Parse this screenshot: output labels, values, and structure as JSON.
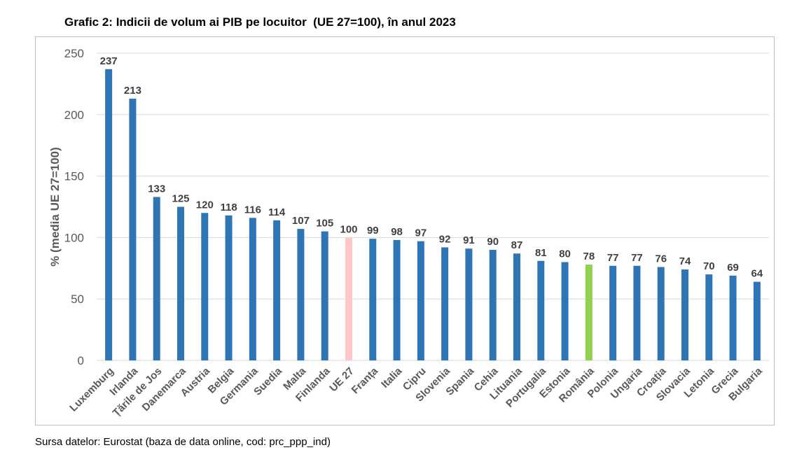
{
  "title": "Grafic 2: Indicii de volum ai PIB pe locuitor  (UE 27=100), în anul 2023",
  "source": "Sursa datelor: Eurostat (baza de data online, cod: prc_ppp_ind)",
  "colors": {
    "default": "#2e75b6",
    "eu": "#ffc7c7",
    "romania": "#92d050",
    "grid": "#d9d9d9",
    "label": "#404040",
    "axis_text": "#595959"
  },
  "chart_data": {
    "type": "bar",
    "title": "Grafic 2: Indicii de volum ai PIB pe locuitor  (UE 27=100), în anul 2023",
    "xlabel": "",
    "ylabel": "% (media UE 27=100)",
    "ylim": [
      0,
      250
    ],
    "yticks": [
      0,
      50,
      100,
      150,
      200,
      250
    ],
    "grid": true,
    "categories": [
      "Luxemburg",
      "Irlanda",
      "Țările de Jos",
      "Danemarca",
      "Austria",
      "Belgia",
      "Germania",
      "Suedia",
      "Malta",
      "Finlanda",
      "UE 27",
      "Franța",
      "Italia",
      "Cipru",
      "Slovenia",
      "Spania",
      "Cehia",
      "Lituania",
      "Portugalia",
      "Estonia",
      "România",
      "Polonia",
      "Ungaria",
      "Croația",
      "Slovacia",
      "Letonia",
      "Grecia",
      "Bulgaria"
    ],
    "values": [
      237,
      213,
      133,
      125,
      120,
      118,
      116,
      114,
      107,
      105,
      100,
      99,
      98,
      97,
      92,
      91,
      90,
      87,
      81,
      80,
      78,
      77,
      77,
      76,
      74,
      70,
      69,
      64
    ],
    "highlight": {
      "UE 27": "eu",
      "România": "romania"
    }
  }
}
